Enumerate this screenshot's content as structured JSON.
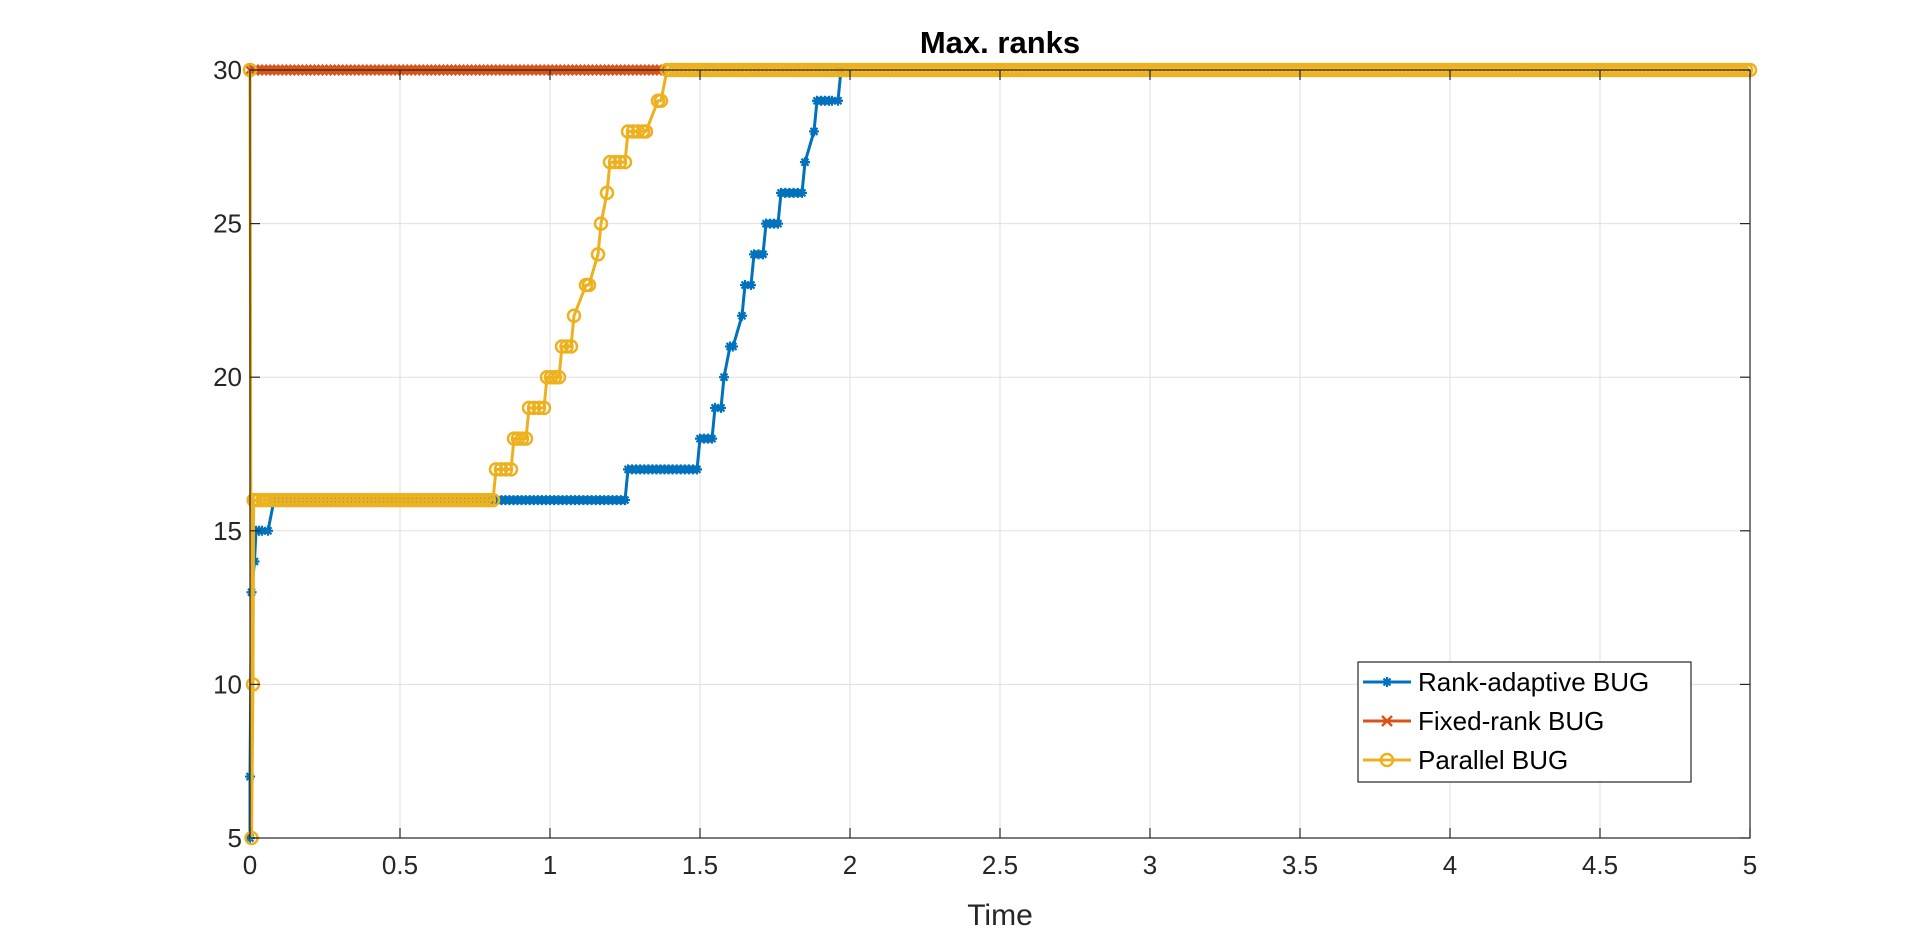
{
  "chart_data": {
    "type": "line",
    "title": "Max. ranks",
    "xlabel": "Time",
    "ylabel": "",
    "xlim": [
      0,
      5
    ],
    "ylim": [
      5,
      30
    ],
    "xticks": [
      0,
      0.5,
      1,
      1.5,
      2,
      2.5,
      3,
      3.5,
      4,
      4.5,
      5
    ],
    "xtick_labels": [
      "0",
      "0.5",
      "1",
      "1.5",
      "2",
      "2.5",
      "3",
      "3.5",
      "4",
      "4.5",
      "5"
    ],
    "yticks": [
      5,
      10,
      15,
      20,
      25,
      30
    ],
    "ytick_labels": [
      "5",
      "10",
      "15",
      "20",
      "25",
      "30"
    ],
    "grid": true,
    "legend_position": "bottom-right",
    "series": [
      {
        "name": "Rank-adaptive BUG",
        "color": "#0072BD",
        "marker": "asterisk",
        "x": [
          0.0,
          0.0,
          0.005,
          0.015,
          0.02,
          0.03,
          0.04,
          0.06,
          0.08,
          0.1,
          0.5,
          1.0,
          1.25,
          1.26,
          1.49,
          1.5,
          1.54,
          1.55,
          1.57,
          1.58,
          1.6,
          1.61,
          1.64,
          1.65,
          1.67,
          1.68,
          1.71,
          1.72,
          1.76,
          1.77,
          1.84,
          1.85,
          1.88,
          1.89,
          1.93,
          1.94,
          1.96,
          1.97
        ],
        "y": [
          5,
          7,
          13,
          14,
          15,
          15,
          15,
          15,
          16,
          16,
          16,
          16,
          16,
          17,
          17,
          18,
          18,
          19,
          19,
          20,
          21,
          21,
          22,
          23,
          23,
          24,
          24,
          25,
          25,
          26,
          26,
          27,
          28,
          29,
          29,
          29,
          29,
          30
        ]
      },
      {
        "name": "Fixed-rank BUG",
        "color": "#D95319",
        "marker": "cross",
        "x": [
          0.0,
          1.37
        ],
        "y": [
          30,
          30
        ]
      },
      {
        "name": "Parallel BUG",
        "color": "#EDB120",
        "marker": "circle",
        "x": [
          0.0,
          0.005,
          0.01,
          0.012,
          0.015,
          0.5,
          0.81,
          0.82,
          0.87,
          0.88,
          0.92,
          0.93,
          0.98,
          0.99,
          1.03,
          1.04,
          1.07,
          1.08,
          1.12,
          1.13,
          1.16,
          1.17,
          1.19,
          1.2,
          1.25,
          1.26,
          1.31,
          1.32,
          1.36,
          1.37,
          1.39,
          2.0,
          3.0,
          4.0,
          5.0
        ],
        "y": [
          30,
          5,
          10,
          16,
          16,
          16,
          16,
          17,
          17,
          18,
          18,
          19,
          19,
          20,
          20,
          21,
          21,
          22,
          23,
          23,
          24,
          25,
          26,
          27,
          27,
          28,
          28,
          28,
          29,
          29,
          30,
          30,
          30,
          30,
          30
        ]
      }
    ]
  }
}
